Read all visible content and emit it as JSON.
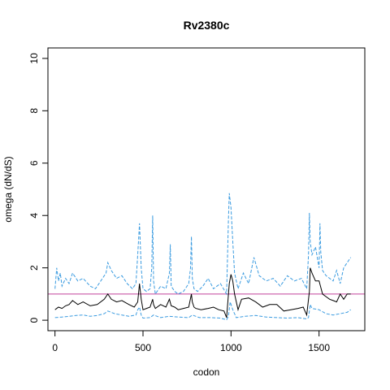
{
  "chart_data": {
    "type": "line",
    "title": "Rv2380c",
    "xlabel": "codon",
    "ylabel": "omega (dN/dS)",
    "xlim": [
      -40,
      1760
    ],
    "ylim": [
      -0.4,
      10.4
    ],
    "xticks": [
      0,
      500,
      1000,
      1500
    ],
    "yticks": [
      0,
      2,
      4,
      6,
      8,
      10
    ],
    "grid": false,
    "legend": "none",
    "colors": {
      "mean": "#000000",
      "ci": "#3a9be0",
      "reference": "#c2409a"
    },
    "reference_line": {
      "y": 1
    },
    "series": [
      {
        "role": "mean",
        "style": "solid",
        "x": [
          0,
          20,
          40,
          60,
          80,
          100,
          130,
          160,
          200,
          240,
          280,
          300,
          320,
          350,
          380,
          420,
          450,
          470,
          480,
          490,
          500,
          520,
          540,
          555,
          560,
          570,
          600,
          630,
          650,
          660,
          680,
          700,
          730,
          760,
          775,
          780,
          790,
          800,
          830,
          870,
          900,
          930,
          960,
          975,
          990,
          1000,
          1010,
          1020,
          1040,
          1060,
          1100,
          1140,
          1180,
          1220,
          1260,
          1300,
          1340,
          1380,
          1410,
          1430,
          1445,
          1450,
          1460,
          1480,
          1500,
          1520,
          1540,
          1560,
          1580,
          1600,
          1620,
          1640,
          1660,
          1680
        ],
        "y": [
          0.4,
          0.5,
          0.45,
          0.55,
          0.6,
          0.75,
          0.6,
          0.7,
          0.55,
          0.6,
          0.8,
          1.0,
          0.8,
          0.7,
          0.75,
          0.6,
          0.5,
          0.7,
          1.4,
          0.8,
          0.4,
          0.45,
          0.5,
          0.8,
          0.6,
          0.45,
          0.6,
          0.5,
          0.8,
          0.55,
          0.5,
          0.4,
          0.45,
          0.5,
          1.0,
          0.7,
          0.5,
          0.45,
          0.4,
          0.45,
          0.5,
          0.4,
          0.35,
          0.1,
          1.4,
          1.75,
          1.5,
          1.0,
          0.4,
          0.8,
          0.85,
          0.7,
          0.5,
          0.6,
          0.6,
          0.35,
          0.4,
          0.45,
          0.5,
          0.2,
          1.1,
          2.0,
          1.8,
          1.5,
          1.5,
          1.0,
          0.9,
          0.8,
          0.75,
          0.7,
          1.0,
          0.8,
          1.0,
          1.0
        ]
      },
      {
        "role": "upper",
        "style": "dashed",
        "x": [
          0,
          10,
          20,
          30,
          40,
          60,
          80,
          100,
          130,
          160,
          200,
          230,
          260,
          290,
          300,
          320,
          350,
          380,
          410,
          440,
          460,
          470,
          480,
          490,
          500,
          520,
          540,
          550,
          555,
          560,
          570,
          600,
          630,
          650,
          655,
          660,
          680,
          700,
          730,
          760,
          770,
          775,
          780,
          790,
          810,
          840,
          870,
          900,
          940,
          975,
          985,
          990,
          1000,
          1010,
          1020,
          1040,
          1070,
          1100,
          1130,
          1160,
          1200,
          1240,
          1280,
          1320,
          1360,
          1400,
          1430,
          1440,
          1445,
          1450,
          1460,
          1480,
          1500,
          1505,
          1510,
          1520,
          1540,
          1560,
          1580,
          1600,
          1620,
          1640,
          1660,
          1680
        ],
        "y": [
          1.2,
          2.0,
          1.5,
          1.8,
          1.3,
          1.6,
          1.4,
          1.8,
          1.5,
          1.6,
          1.3,
          1.2,
          1.5,
          1.8,
          2.2,
          1.9,
          1.6,
          1.7,
          1.4,
          1.2,
          1.4,
          2.5,
          3.7,
          2.0,
          1.2,
          1.1,
          1.2,
          2.0,
          4.0,
          1.5,
          1.0,
          1.3,
          1.2,
          1.8,
          2.9,
          1.3,
          1.1,
          1.0,
          1.1,
          1.4,
          2.0,
          3.2,
          1.6,
          1.2,
          1.1,
          1.3,
          1.6,
          1.2,
          1.4,
          1.0,
          3.8,
          4.85,
          4.3,
          3.0,
          1.8,
          1.2,
          1.8,
          1.4,
          2.4,
          1.7,
          1.5,
          1.6,
          1.3,
          1.7,
          1.5,
          1.6,
          1.2,
          2.5,
          4.1,
          3.0,
          2.5,
          2.8,
          2.0,
          3.7,
          2.6,
          1.9,
          1.7,
          1.6,
          1.5,
          1.9,
          1.4,
          2.0,
          2.2,
          2.4
        ]
      },
      {
        "role": "lower",
        "style": "dashed",
        "x": [
          0,
          40,
          80,
          120,
          160,
          200,
          240,
          280,
          300,
          340,
          380,
          420,
          460,
          470,
          480,
          490,
          500,
          540,
          560,
          600,
          650,
          700,
          760,
          780,
          820,
          880,
          940,
          975,
          985,
          995,
          1010,
          1030,
          1080,
          1140,
          1200,
          1260,
          1320,
          1380,
          1430,
          1440,
          1450,
          1460,
          1500,
          1540,
          1580,
          1620,
          1660,
          1680
        ],
        "y": [
          0.1,
          0.12,
          0.15,
          0.18,
          0.2,
          0.15,
          0.18,
          0.25,
          0.35,
          0.25,
          0.2,
          0.15,
          0.2,
          0.4,
          0.5,
          0.2,
          0.08,
          0.1,
          0.2,
          0.1,
          0.15,
          0.12,
          0.1,
          0.2,
          0.1,
          0.1,
          0.08,
          0.02,
          0.15,
          0.7,
          0.4,
          0.1,
          0.15,
          0.18,
          0.12,
          0.1,
          0.08,
          0.1,
          0.05,
          0.1,
          0.6,
          0.45,
          0.4,
          0.25,
          0.2,
          0.25,
          0.3,
          0.4
        ]
      }
    ]
  }
}
